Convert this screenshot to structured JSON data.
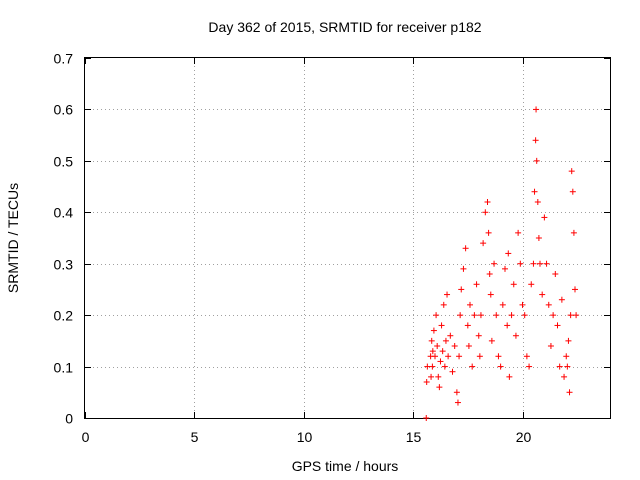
{
  "chart_data": {
    "type": "scatter",
    "title": "Day 362 of 2015, SRMTID for receiver p182",
    "xlabel": "GPS time / hours",
    "ylabel": "SRMTID / TECUs",
    "xlim": [
      0,
      24
    ],
    "ylim": [
      0,
      0.7
    ],
    "x_ticks": [
      0,
      5,
      10,
      15,
      20
    ],
    "x_tick_labels": [
      "0",
      "5",
      "10",
      "15",
      "20"
    ],
    "y_ticks": [
      0,
      0.1,
      0.2,
      0.3,
      0.4,
      0.5,
      0.6,
      0.7
    ],
    "y_tick_labels": [
      "0",
      "0.1",
      "0.2",
      "0.3",
      "0.4",
      "0.5",
      "0.6",
      "0.7"
    ],
    "grid": true,
    "marker": "+",
    "color": "#ff0000",
    "series": [
      {
        "name": "SRMTID",
        "x": [
          15.6,
          15.62,
          15.65,
          15.8,
          15.82,
          15.85,
          15.88,
          15.9,
          15.95,
          16.0,
          16.05,
          16.1,
          16.15,
          16.2,
          16.25,
          16.3,
          16.35,
          16.4,
          16.45,
          16.5,
          16.55,
          16.6,
          16.7,
          16.8,
          16.9,
          17.0,
          17.05,
          17.1,
          17.15,
          17.2,
          17.3,
          17.4,
          17.5,
          17.55,
          17.6,
          17.7,
          17.8,
          17.9,
          18.0,
          18.05,
          18.1,
          18.2,
          18.3,
          18.4,
          18.45,
          18.5,
          18.55,
          18.6,
          18.7,
          18.8,
          18.9,
          19.0,
          19.1,
          19.2,
          19.3,
          19.35,
          19.4,
          19.5,
          19.6,
          19.7,
          19.8,
          19.9,
          20.0,
          20.1,
          20.2,
          20.3,
          20.4,
          20.5,
          20.55,
          20.6,
          20.62,
          20.65,
          20.7,
          20.75,
          20.8,
          20.9,
          21.0,
          21.1,
          21.2,
          21.3,
          21.4,
          21.5,
          21.6,
          21.7,
          21.8,
          21.9,
          22.0,
          22.05,
          22.1,
          22.15,
          22.2,
          22.25,
          22.3,
          22.35,
          22.4,
          22.45
        ],
        "y": [
          0.0,
          0.07,
          0.1,
          0.12,
          0.08,
          0.15,
          0.1,
          0.13,
          0.17,
          0.12,
          0.2,
          0.14,
          0.08,
          0.06,
          0.11,
          0.18,
          0.13,
          0.22,
          0.1,
          0.15,
          0.24,
          0.12,
          0.16,
          0.09,
          0.14,
          0.05,
          0.03,
          0.12,
          0.2,
          0.25,
          0.29,
          0.33,
          0.18,
          0.14,
          0.22,
          0.1,
          0.2,
          0.26,
          0.16,
          0.12,
          0.2,
          0.34,
          0.4,
          0.42,
          0.36,
          0.28,
          0.24,
          0.15,
          0.3,
          0.2,
          0.12,
          0.1,
          0.22,
          0.29,
          0.18,
          0.32,
          0.08,
          0.2,
          0.26,
          0.16,
          0.36,
          0.3,
          0.22,
          0.2,
          0.12,
          0.1,
          0.26,
          0.3,
          0.44,
          0.54,
          0.6,
          0.5,
          0.42,
          0.35,
          0.3,
          0.24,
          0.39,
          0.3,
          0.22,
          0.14,
          0.2,
          0.28,
          0.18,
          0.1,
          0.23,
          0.08,
          0.12,
          0.1,
          0.15,
          0.05,
          0.2,
          0.48,
          0.44,
          0.36,
          0.25,
          0.2
        ]
      }
    ]
  }
}
